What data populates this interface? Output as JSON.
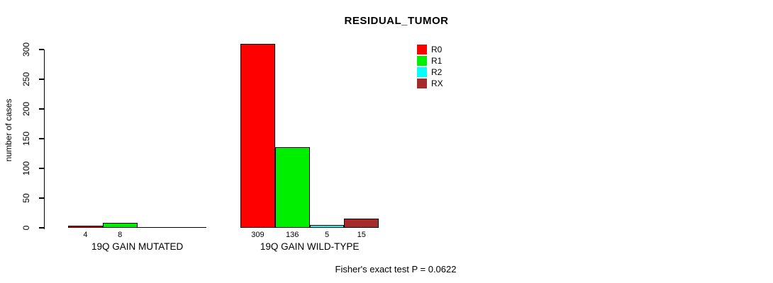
{
  "chart_data": {
    "type": "bar",
    "title": "RESIDUAL_TUMOR",
    "ylabel": "number of cases",
    "xlabel": "",
    "ylim": [
      0,
      300
    ],
    "yticks": [
      0,
      50,
      100,
      150,
      200,
      250,
      300
    ],
    "categories": [
      "19Q GAIN MUTATED",
      "19Q GAIN WILD-TYPE"
    ],
    "series": [
      {
        "name": "R0",
        "color": "#ff0000",
        "values": [
          4,
          309
        ]
      },
      {
        "name": "R1",
        "color": "#00ee00",
        "values": [
          8,
          136
        ]
      },
      {
        "name": "R2",
        "color": "#00ffff",
        "values": [
          0,
          5
        ]
      },
      {
        "name": "RX",
        "color": "#a52a2a",
        "values": [
          0,
          15
        ]
      }
    ],
    "bar_value_labels": [
      [
        "4",
        "8",
        "",
        ""
      ],
      [
        "309",
        "136",
        "5",
        "15"
      ]
    ],
    "legend_position": "top-right",
    "grid": false,
    "annotation": "Fisher's exact test P = 0.0622"
  }
}
